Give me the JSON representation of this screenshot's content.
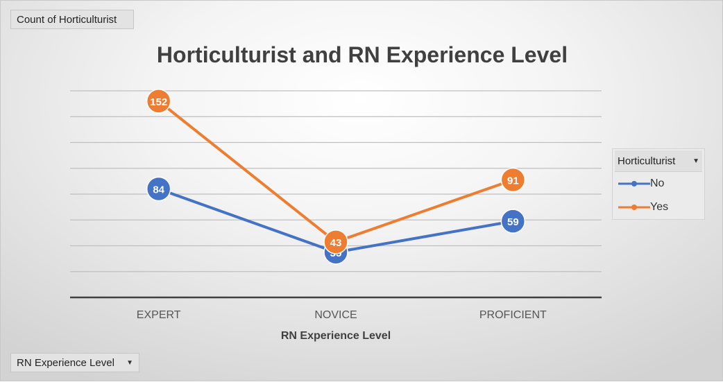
{
  "pivot": {
    "value_button": "Count of Horticulturist",
    "axis_button": "RN Experience Level",
    "legend_header": "Horticulturist"
  },
  "colors": {
    "no": "#4472C4",
    "yes": "#ED7D31",
    "gridline": "#bfbfbf",
    "axis": "#404040"
  },
  "chart_data": {
    "type": "line",
    "title": "Horticulturist and RN Experience Level",
    "xlabel": "RN Experience Level",
    "ylabel": "",
    "categories": [
      "EXPERT",
      "NOVICE",
      "PROFICIENT"
    ],
    "series": [
      {
        "name": "No",
        "values": [
          84,
          35,
          59
        ]
      },
      {
        "name": "Yes",
        "values": [
          152,
          43,
          91
        ]
      }
    ],
    "ylim": [
      0,
      160
    ],
    "grid": true,
    "legend_position": "right",
    "data_labels": true
  }
}
